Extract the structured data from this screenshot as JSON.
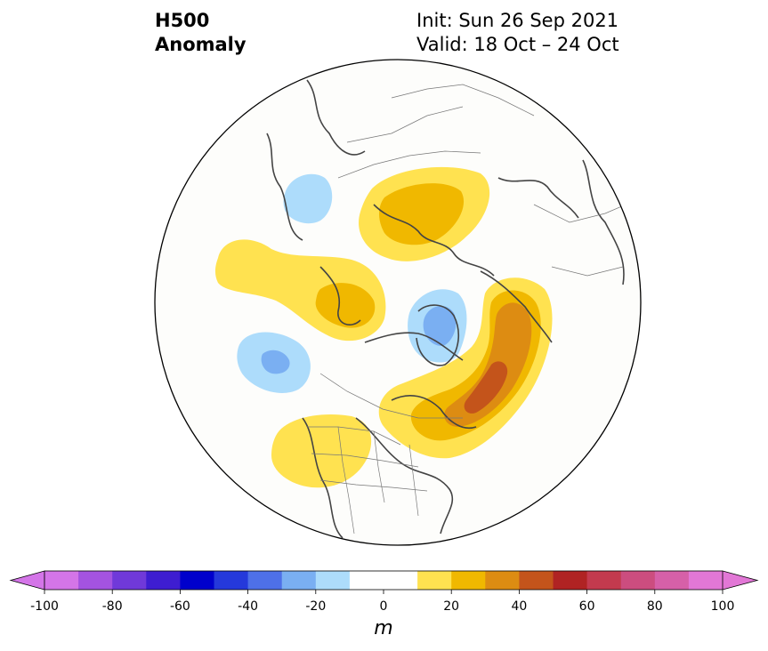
{
  "title": {
    "left_line1": "H500",
    "left_line2": "Anomaly",
    "right_line1": "Init: Sun 26 Sep 2021",
    "right_line2": "Valid: 18 Oct – 24 Oct"
  },
  "colorbar": {
    "unit": "m",
    "tick_labels": [
      "-100",
      "-80",
      "-60",
      "-40",
      "-20",
      "0",
      "20",
      "40",
      "60",
      "80",
      "100"
    ],
    "bins": [
      {
        "range": "-100 to -90",
        "color": "#d475e8"
      },
      {
        "range": "-90 to -80",
        "color": "#a453e0"
      },
      {
        "range": "-80 to -70",
        "color": "#7039d9"
      },
      {
        "range": "-70 to -60",
        "color": "#3e1dd1"
      },
      {
        "range": "-60 to -50",
        "color": "#0000cc"
      },
      {
        "range": "-50 to -40",
        "color": "#2539db"
      },
      {
        "range": "-40 to -30",
        "color": "#4e70e8"
      },
      {
        "range": "-30 to -20",
        "color": "#7aaff2"
      },
      {
        "range": "-20 to -10",
        "color": "#addcfb"
      },
      {
        "range": "-10 to 0",
        "color": "#ffffff"
      },
      {
        "range": "0 to 10",
        "color": "#ffffff"
      },
      {
        "range": "10 to 20",
        "color": "#ffe250"
      },
      {
        "range": "20 to 30",
        "color": "#f0b800"
      },
      {
        "range": "30 to 40",
        "color": "#dd8c12"
      },
      {
        "range": "40 to 50",
        "color": "#c4541b"
      },
      {
        "range": "50 to 60",
        "color": "#b02323"
      },
      {
        "range": "60 to 70",
        "color": "#c33a4e"
      },
      {
        "range": "70 to 80",
        "color": "#cc4d7f"
      },
      {
        "range": "80 to 90",
        "color": "#d660a8"
      },
      {
        "range": "90 to 100",
        "color": "#e277d6"
      }
    ],
    "extend_low_color": "#d475e8",
    "extend_high_color": "#e277d6"
  },
  "map": {
    "projection": "north-polar-stereographic",
    "anomaly_features": [
      {
        "label": "ridge-europe",
        "level": "20 to 30 m"
      },
      {
        "label": "ridge-west-russia",
        "level": "20 to 30 m"
      },
      {
        "label": "trough-central-siberia",
        "level": "-20 to -10 m"
      },
      {
        "label": "trough-aleutians",
        "level": "-30 to -20 m"
      },
      {
        "label": "trough-greenland",
        "level": "-30 to -20 m"
      },
      {
        "label": "ridge-north-atlantic-canada",
        "level": "40 to 50 m"
      },
      {
        "label": "ridge-western-us",
        "level": "10 to 20 m"
      }
    ]
  }
}
